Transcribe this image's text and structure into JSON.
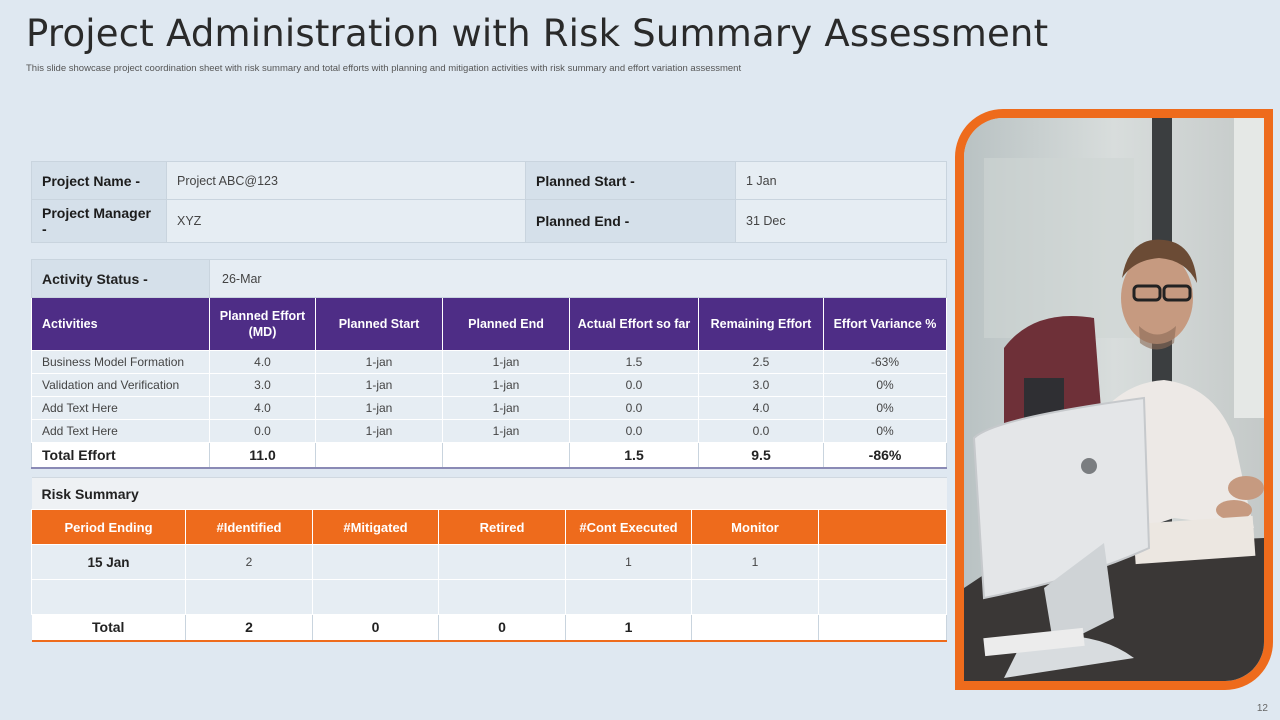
{
  "title": "Project Administration with Risk Summary Assessment",
  "subtitle": "This slide showcase project coordination sheet with risk summary and total efforts with planning and mitigation  activities with risk summary and effort variation assessment",
  "info": {
    "project_name_label": "Project Name  -",
    "project_name_value": "Project ABC@123",
    "planned_start_label": "Planned Start -",
    "planned_start_value": "1 Jan",
    "project_manager_label": "Project Manager  -",
    "project_manager_value": "XYZ",
    "planned_end_label": "Planned End -",
    "planned_end_value": "31 Dec"
  },
  "activity": {
    "status_label": "Activity Status -",
    "status_value": "26-Mar",
    "headers": [
      "Activities",
      "Planned Effort (MD)",
      "Planned Start",
      "Planned End",
      "Actual Effort so far",
      "Remaining Effort",
      "Effort Variance %"
    ],
    "rows": [
      [
        "Business Model Formation",
        "4.0",
        "1-jan",
        "1-jan",
        "1.5",
        "2.5",
        "-63%"
      ],
      [
        "Validation and Verification",
        "3.0",
        "1-jan",
        "1-jan",
        "0.0",
        "3.0",
        "0%"
      ],
      [
        "Add Text Here",
        "4.0",
        "1-jan",
        "1-jan",
        "0.0",
        "4.0",
        "0%"
      ],
      [
        "Add Text Here",
        "0.0",
        "1-jan",
        "1-jan",
        "0.0",
        "0.0",
        "0%"
      ]
    ],
    "total": [
      "Total Effort",
      "11.0",
      "",
      "",
      "1.5",
      "9.5",
      "-86%"
    ]
  },
  "risk": {
    "title": "Risk Summary",
    "headers": [
      "Period Ending",
      "#Identified",
      "#Mitigated",
      "Retired",
      "#Cont Executed",
      "Monitor",
      ""
    ],
    "rows": [
      [
        "15 Jan",
        "2",
        "",
        "",
        "1",
        "1",
        ""
      ],
      [
        "",
        "",
        "",
        "",
        "",
        "",
        ""
      ]
    ],
    "total": [
      "Total",
      "2",
      "0",
      "0",
      "1",
      "",
      ""
    ]
  },
  "page_number": "12",
  "colors": {
    "purple": "#4e2d86",
    "orange": "#ee6b1c",
    "background": "#dfe8f1"
  }
}
